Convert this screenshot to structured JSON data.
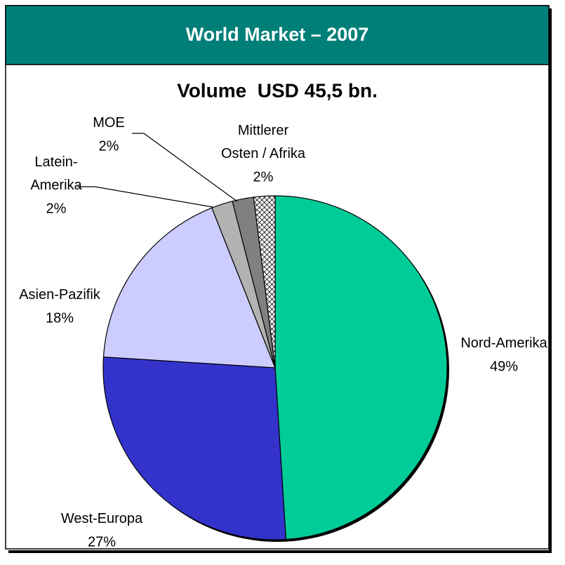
{
  "chart_data": {
    "type": "pie",
    "title": "World Market – 2007",
    "subtitle": "Volume  USD 45,5 bn.",
    "categories": [
      "Nord-Amerika",
      "West-Europa",
      "Asien-Pazifik",
      "Latein-\nAmerika",
      "MOE",
      "Mittlerer\nOsten / Afrika"
    ],
    "values": [
      49,
      27,
      18,
      2,
      2,
      2
    ],
    "value_labels": [
      "49%",
      "27%",
      "18%",
      "2%",
      "2%",
      "2%"
    ],
    "colors": [
      "#00cc99",
      "#3333cc",
      "#ccccff",
      "#b2b2b2",
      "#808080",
      "hatch"
    ]
  }
}
